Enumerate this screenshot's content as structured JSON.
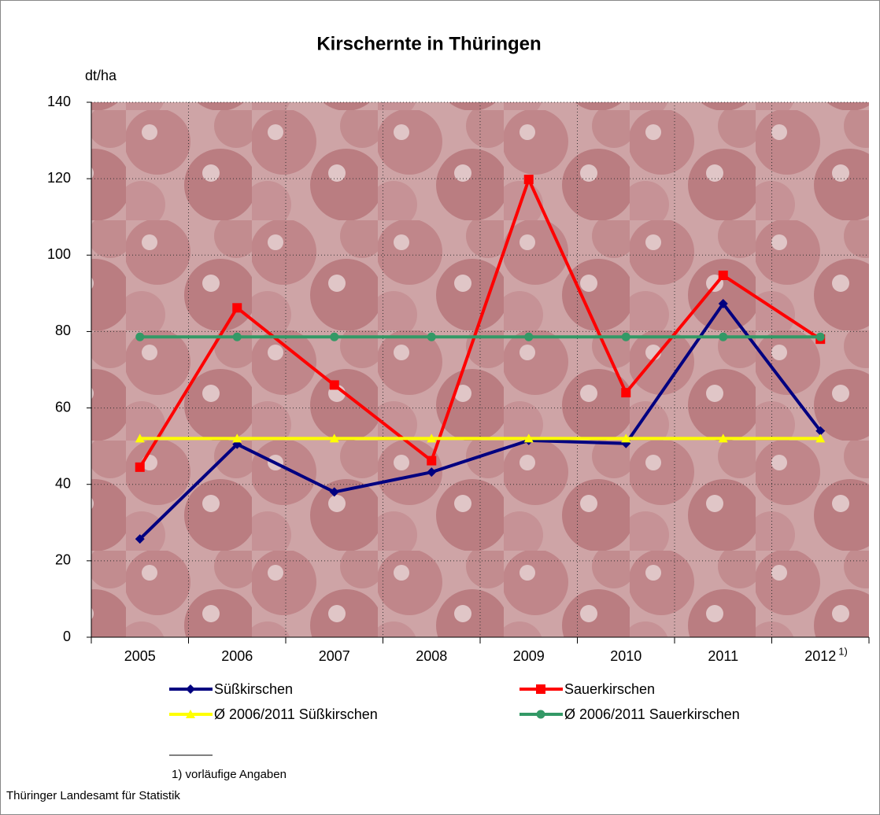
{
  "chart_data": {
    "type": "line",
    "title": "Kirschernte in Thüringen",
    "y_label": "dt/ha",
    "categories": [
      "2005",
      "2006",
      "2007",
      "2008",
      "2009",
      "2010",
      "2011",
      "2012"
    ],
    "category_footnote_mark": "1)",
    "series": [
      {
        "name": "Süßkirschen",
        "color": "#000080",
        "marker": "diamond",
        "values": [
          25.7,
          50.5,
          38,
          43.2,
          51.5,
          50.7,
          87.3,
          54
        ]
      },
      {
        "name": "Sauerkirschen",
        "color": "#ff0000",
        "marker": "square",
        "values": [
          44.5,
          86.2,
          66,
          46.2,
          119.8,
          64,
          94.7,
          78
        ]
      },
      {
        "name": "Ø 2006/2011 Süßkirschen",
        "color": "#ffff00",
        "marker": "triangle",
        "values": [
          52,
          52,
          52,
          52,
          52,
          52,
          52,
          52
        ]
      },
      {
        "name": "Ø 2006/2011 Sauerkirschen",
        "color": "#339966",
        "marker": "circle",
        "values": [
          78.6,
          78.6,
          78.6,
          78.6,
          78.6,
          78.6,
          78.6,
          78.6
        ]
      }
    ],
    "ylim": [
      0,
      140
    ],
    "yticks": [
      0,
      20,
      40,
      60,
      80,
      100,
      120,
      140
    ],
    "grid": true,
    "footnote": "1) vorläufige Angaben",
    "source": "Thüringer Landesamt für Statistik"
  }
}
